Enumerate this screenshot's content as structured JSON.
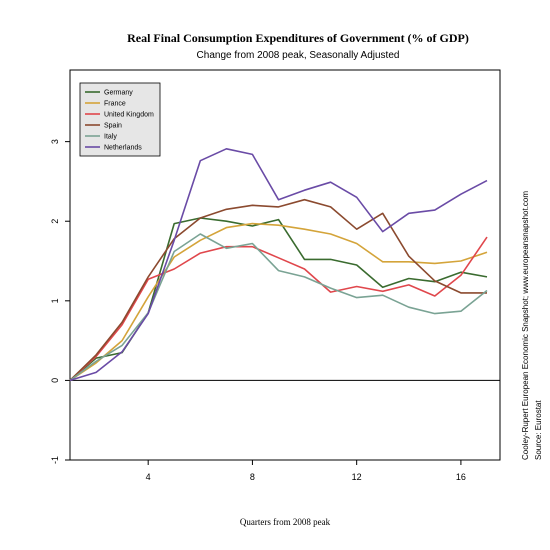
{
  "chart_data": {
    "type": "line",
    "title": "Real Final Consumption Expenditures of Government (% of GDP)",
    "subtitle": "Change from 2008 peak, Seasonally Adjusted",
    "xlabel": "Quarters from 2008 peak",
    "ylabel": "",
    "xlim": [
      1,
      17.5
    ],
    "ylim": [
      -1,
      3.9
    ],
    "xticks": [
      4,
      8,
      12,
      16
    ],
    "yticks": [
      -1,
      0,
      1,
      2,
      3
    ],
    "grid": false,
    "legend_position": "top-left",
    "x": [
      1,
      2,
      3,
      4,
      5,
      6,
      7,
      8,
      9,
      10,
      11,
      12,
      13,
      14,
      15,
      16,
      17
    ],
    "series": [
      {
        "name": "Germany",
        "color": "#3a6b2f",
        "values": [
          0,
          0.28,
          0.35,
          0.85,
          1.97,
          2.04,
          2.0,
          1.94,
          2.02,
          1.52,
          1.52,
          1.45,
          1.17,
          1.28,
          1.24,
          1.36,
          1.3
        ]
      },
      {
        "name": "France",
        "color": "#d4a43a",
        "values": [
          0,
          0.22,
          0.5,
          1.05,
          1.55,
          1.76,
          1.92,
          1.97,
          1.95,
          1.9,
          1.84,
          1.72,
          1.49,
          1.49,
          1.47,
          1.5,
          1.61
        ]
      },
      {
        "name": "United Kingdom",
        "color": "#e0474c",
        "values": [
          0,
          0.3,
          0.7,
          1.27,
          1.4,
          1.6,
          1.68,
          1.68,
          1.54,
          1.4,
          1.11,
          1.18,
          1.12,
          1.2,
          1.06,
          1.32,
          1.8
        ]
      },
      {
        "name": "Spain",
        "color": "#8b4a2f",
        "values": [
          0,
          0.32,
          0.73,
          1.3,
          1.78,
          2.04,
          2.15,
          2.2,
          2.18,
          2.27,
          2.18,
          1.9,
          2.1,
          1.56,
          1.25,
          1.1,
          1.1
        ]
      },
      {
        "name": "Italy",
        "color": "#7aa394",
        "values": [
          0,
          0.24,
          0.44,
          0.85,
          1.62,
          1.84,
          1.66,
          1.72,
          1.38,
          1.3,
          1.16,
          1.04,
          1.07,
          0.92,
          0.84,
          0.87,
          1.13
        ]
      },
      {
        "name": "Netherlands",
        "color": "#6a4ba6",
        "values": [
          0,
          0.1,
          0.36,
          0.84,
          1.76,
          2.76,
          2.91,
          2.84,
          2.27,
          2.39,
          2.49,
          2.3,
          1.87,
          2.1,
          2.14,
          2.34,
          2.51
        ]
      }
    ]
  },
  "side_notes": {
    "credit": "Cooley-Rupert European Economic Snapshot; www.europeansnapshot.com",
    "source": "Source: Eurostat"
  }
}
